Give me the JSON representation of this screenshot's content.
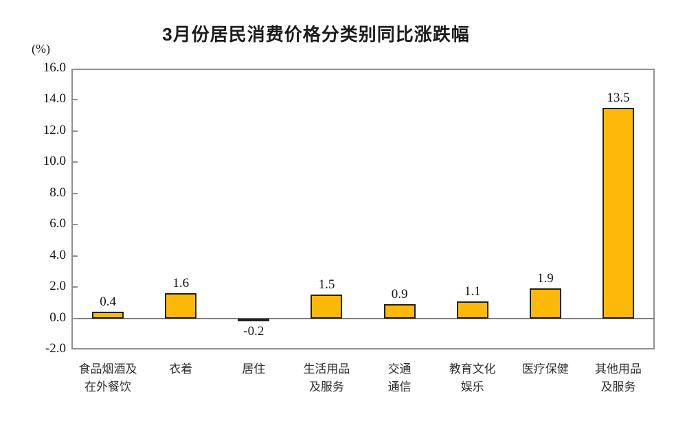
{
  "chart_data": {
    "type": "bar",
    "title": "3月份居民消费价格分类别同比涨跌幅",
    "ylabel": "(%)",
    "categories": [
      {
        "lines": [
          "食品烟酒及",
          "在外餐饮"
        ]
      },
      {
        "lines": [
          "衣着"
        ]
      },
      {
        "lines": [
          "居住"
        ]
      },
      {
        "lines": [
          "生活用品",
          "及服务"
        ]
      },
      {
        "lines": [
          "交通",
          "通信"
        ]
      },
      {
        "lines": [
          "教育文化",
          "娱乐"
        ]
      },
      {
        "lines": [
          "医疗保健"
        ]
      },
      {
        "lines": [
          "其他用品",
          "及服务"
        ]
      }
    ],
    "values": [
      0.4,
      1.6,
      -0.2,
      1.5,
      0.9,
      1.1,
      1.9,
      13.5
    ],
    "data_labels": [
      "0.4",
      "1.6",
      "-0.2",
      "1.5",
      "0.9",
      "1.1",
      "1.9",
      "13.5"
    ],
    "y_axis": {
      "min": -2,
      "max": 16,
      "step": 2,
      "tick_labels": [
        "16.0",
        "14.0",
        "12.0",
        "10.0",
        "8.0",
        "6.0",
        "4.0",
        "2.0",
        "0.0",
        "-2.0"
      ]
    },
    "grid": false,
    "legend": null,
    "colors": {
      "bar_positive": "#FDB90A",
      "bar_negative": "#2D96C8",
      "bar_border": "#1f1f1f",
      "axis": "#8f8f8f",
      "zero_line": "#7d7d7d",
      "text": "#141414"
    }
  }
}
